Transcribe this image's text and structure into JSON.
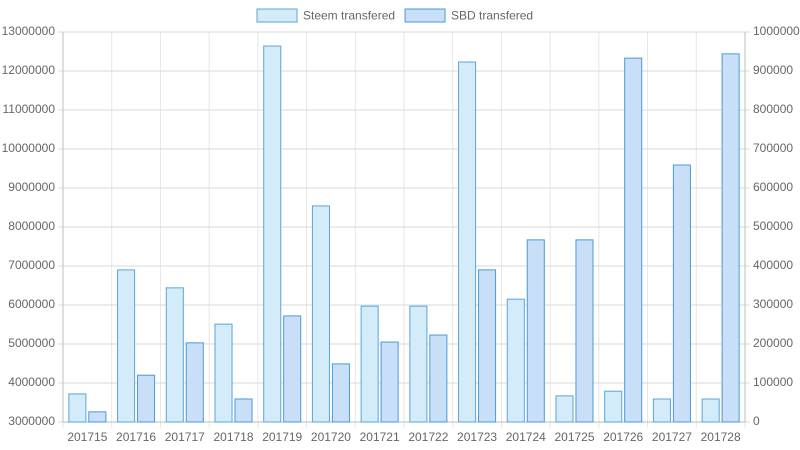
{
  "chart_data": {
    "type": "bar",
    "categories": [
      "201715",
      "201716",
      "201717",
      "201718",
      "201719",
      "201720",
      "201721",
      "201722",
      "201723",
      "201724",
      "201725",
      "201726",
      "201727",
      "201728"
    ],
    "series": [
      {
        "name": "Steem transfered",
        "color": "#d4ebf9",
        "border": "#5aa6d9",
        "values": [
          3720000,
          6900000,
          6440000,
          5510000,
          12640000,
          8540000,
          5970000,
          5970000,
          12230000,
          6150000,
          3670000,
          3790000,
          3590000,
          3590000
        ]
      },
      {
        "name": "SBD transfered",
        "color": "#c9dff8",
        "border": "#4a9ad6",
        "axis": "y2",
        "values": [
          26000,
          120000,
          203000,
          59000,
          272000,
          149000,
          205000,
          223000,
          390000,
          467000,
          467000,
          933000,
          659000,
          944000
        ]
      }
    ],
    "ylim": [
      3000000,
      13000000
    ],
    "yticks": [
      3000000,
      4000000,
      5000000,
      6000000,
      7000000,
      8000000,
      9000000,
      10000000,
      11000000,
      12000000,
      13000000
    ],
    "y2lim": [
      0,
      1000000
    ],
    "y2ticks": [
      0,
      100000,
      200000,
      300000,
      400000,
      500000,
      600000,
      700000,
      800000,
      900000,
      1000000
    ],
    "grid": true
  }
}
